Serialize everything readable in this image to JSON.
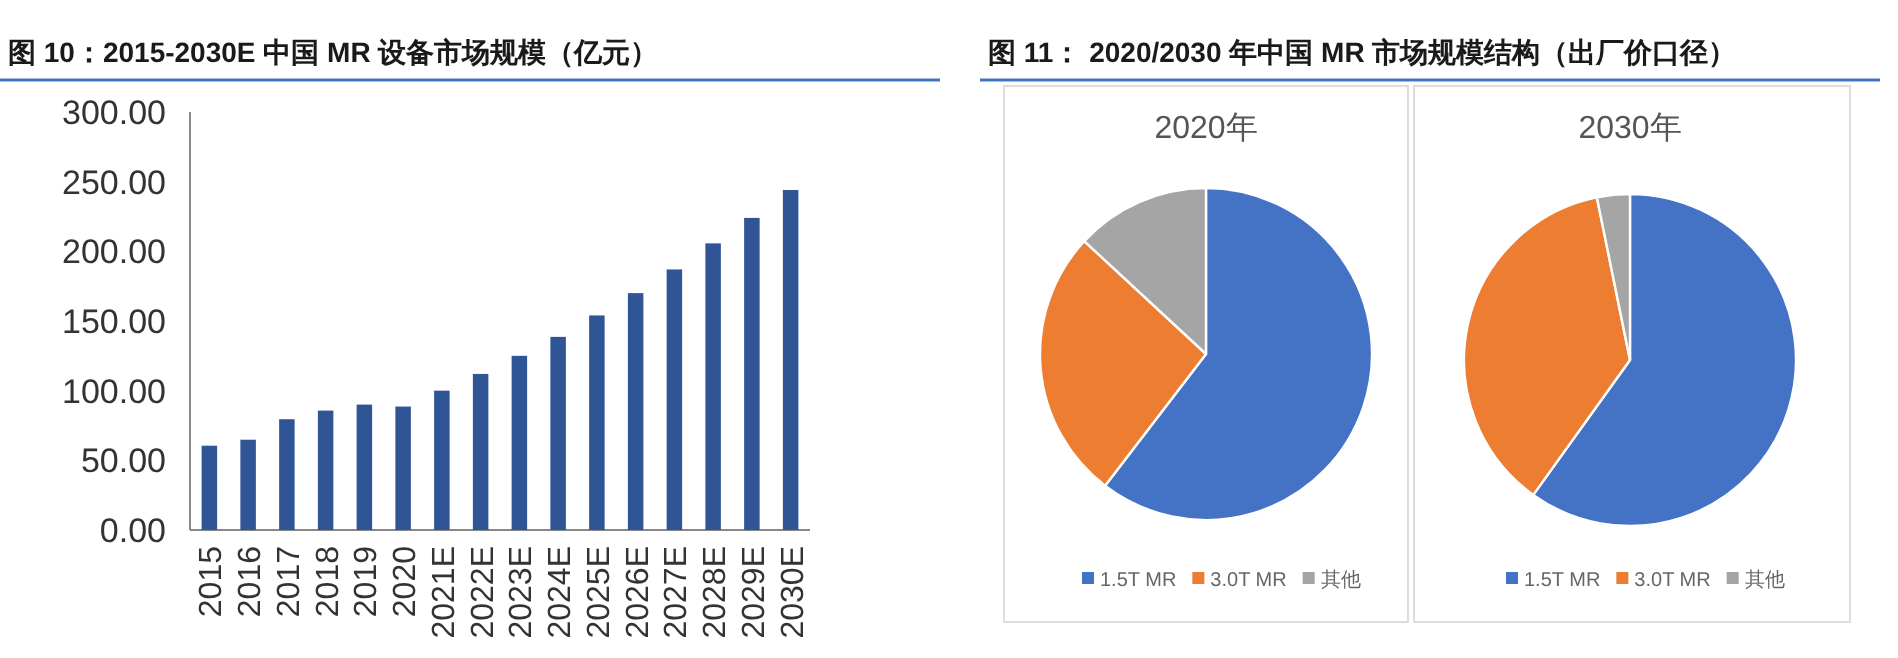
{
  "chart_data": [
    {
      "type": "bar",
      "title": "图 10：2015-2030E 中国 MR 设备市场规模（亿元）",
      "categories": [
        "2015",
        "2016",
        "2017",
        "2018",
        "2019",
        "2020",
        "2021E",
        "2022E",
        "2023E",
        "2024E",
        "2025E",
        "2026E",
        "2027E",
        "2028E",
        "2029E",
        "2030E"
      ],
      "values": [
        60.5,
        64.8,
        79.5,
        85.7,
        90,
        88.6,
        100,
        112,
        125,
        138.6,
        154,
        170,
        187,
        205.7,
        224,
        244
      ],
      "color": "#2f5597",
      "ylim": [
        0,
        300
      ],
      "yticks": [
        {
          "value": 0,
          "label": "0.00"
        },
        {
          "value": 50,
          "label": "50.00"
        },
        {
          "value": 100,
          "label": "100.00"
        },
        {
          "value": 150,
          "label": "150.00"
        },
        {
          "value": 200,
          "label": "200.00"
        },
        {
          "value": 250,
          "label": "250.00"
        },
        {
          "value": 300,
          "label": "300.00"
        }
      ]
    },
    {
      "type": "pie",
      "title": "图 11： 2020/2030 年中国 MR 市场规模结构（出厂价口径）",
      "subtitle": "2020年",
      "categories": [
        "1.5T MR",
        "3.0T MR",
        "其他"
      ],
      "values": [
        60.4,
        26.5,
        13.1
      ],
      "colors": [
        "#4472c4",
        "#ed7d31",
        "#a5a5a5"
      ],
      "legend": "bottom"
    },
    {
      "type": "pie",
      "title": "2030年",
      "categories": [
        "1.5T MR",
        "3.0T MR",
        "其他"
      ],
      "values": [
        59.9,
        36.9,
        3.2
      ],
      "colors": [
        "#4472c4",
        "#ed7d31",
        "#a5a5a5"
      ],
      "legend": "bottom"
    }
  ]
}
